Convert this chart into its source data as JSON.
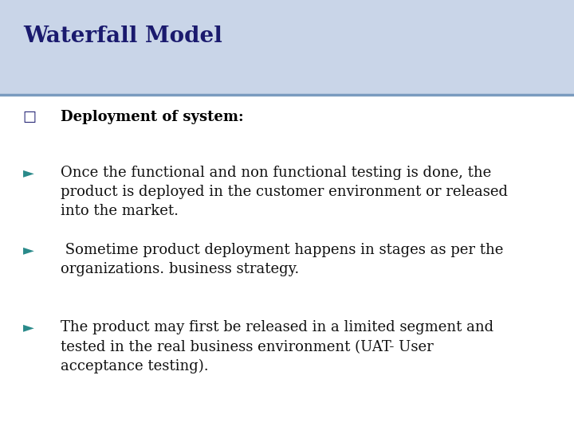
{
  "title": "Waterfall Model",
  "title_color": "#1a1a6e",
  "title_fontsize": 20,
  "title_font": "DejaVu Serif",
  "header_bg": "#c9d5e8",
  "body_bg": "#ffffff",
  "separator_color": "#7a9bbf",
  "bullet_color": "#2a8a8a",
  "bullet_fontsize": 13,
  "items": [
    {
      "type": "square",
      "text": "Deployment of system:",
      "bold": true
    },
    {
      "type": "arrow",
      "text": "Once the functional and non functional testing is done, the\nproduct is deployed in the customer environment or released\ninto the market.",
      "bold": false
    },
    {
      "type": "arrow",
      "text": " Sometime product deployment happens in stages as per the\norganizations. business strategy.",
      "bold": false
    },
    {
      "type": "arrow",
      "text": "The product may first be released in a limited segment and\ntested in the real business environment (UAT- User\nacceptance testing).",
      "bold": false
    }
  ]
}
